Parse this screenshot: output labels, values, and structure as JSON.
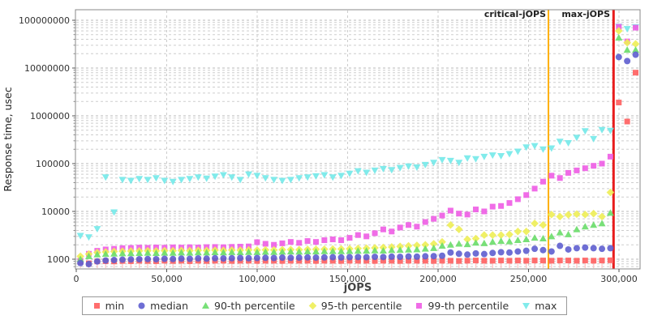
{
  "chart": {
    "y_axis_label": "Response time, usec",
    "x_axis_label": "jOPS",
    "annotations": {
      "critical": {
        "label": "critical-jOPS",
        "jops": 261000,
        "color": "#ffb000"
      },
      "max": {
        "label": "max-jOPS",
        "jops": 297000,
        "color": "#e81c1c"
      }
    }
  },
  "legend": {
    "items": [
      {
        "label": "min",
        "marker": "square",
        "color": "#ff5e5e"
      },
      {
        "label": "median",
        "marker": "circle",
        "color": "#5e5ecf"
      },
      {
        "label": "90-th percentile",
        "marker": "triangle-up",
        "color": "#69dd69"
      },
      {
        "label": "95-th percentile",
        "marker": "diamond",
        "color": "#eeee55"
      },
      {
        "label": "99-th percentile",
        "marker": "square",
        "color": "#ee5ce4"
      },
      {
        "label": "max",
        "marker": "triangle-down",
        "color": "#73e9e9"
      }
    ]
  },
  "chart_data": {
    "type": "scatter",
    "title": "",
    "xlabel": "jOPS",
    "ylabel": "Response time, usec",
    "y_scale": "log",
    "xlim": [
      0,
      312000
    ],
    "ylim": [
      600,
      100000000
    ],
    "grid": true,
    "legend_position": "bottom",
    "x_tick_values": [
      0,
      50000,
      100000,
      150000,
      200000,
      250000,
      300000
    ],
    "x_tick_labels": [
      "0",
      "50,000",
      "100,000",
      "150,000",
      "200,000",
      "250,000",
      "300,000"
    ],
    "y_tick_values": [
      1000,
      10000,
      100000,
      1000000,
      10000000,
      100000000
    ],
    "y_tick_labels": [
      "1000",
      "10000",
      "100000",
      "1000000",
      "10000000",
      "100000000"
    ],
    "vlines": [
      {
        "label": "critical-jOPS",
        "jops": 261000,
        "color": "#ffb000",
        "width": 2
      },
      {
        "label": "max-jOPS",
        "jops": 297000,
        "color": "#e81c1c",
        "width": 3
      }
    ],
    "x": [
      2300,
      6950,
      11600,
      16250,
      20900,
      25550,
      30200,
      34850,
      39500,
      44150,
      48800,
      53450,
      58100,
      62750,
      67400,
      72050,
      76700,
      81350,
      86000,
      90650,
      95300,
      99950,
      104600,
      109250,
      113900,
      118550,
      123200,
      127850,
      132500,
      137150,
      141800,
      146450,
      151100,
      155750,
      160400,
      165050,
      169700,
      174350,
      179000,
      183650,
      188300,
      192950,
      197600,
      202250,
      206900,
      211550,
      216200,
      220850,
      225500,
      230150,
      234800,
      239450,
      244100,
      248750,
      253400,
      258050,
      262700,
      267350,
      272000,
      276650,
      281300,
      285950,
      290600,
      295250,
      299900,
      304550,
      309200
    ],
    "series": [
      {
        "name": "min",
        "marker": "square",
        "color": "#ff5e5e",
        "stem_color": "#ffc9c9",
        "values": [
          880,
          820,
          900,
          910,
          900,
          920,
          910,
          930,
          920,
          910,
          930,
          920,
          930,
          910,
          930,
          920,
          930,
          930,
          920,
          930,
          930,
          920,
          930,
          930,
          920,
          930,
          930,
          930,
          920,
          930,
          930,
          920,
          930,
          930,
          930,
          920,
          930,
          930,
          920,
          930,
          930,
          930,
          920,
          930,
          930,
          920,
          930,
          940,
          930,
          930,
          940,
          930,
          940,
          930,
          940,
          940,
          930,
          940,
          940,
          930,
          940,
          930,
          940,
          950,
          1900000,
          760000,
          8000000
        ]
      },
      {
        "name": "median",
        "marker": "circle",
        "color": "#5e5ecf",
        "values": [
          830,
          790,
          900,
          940,
          960,
          980,
          990,
          1000,
          1010,
          1000,
          1020,
          1010,
          1030,
          1020,
          1040,
          1030,
          1050,
          1040,
          1050,
          1060,
          1050,
          1060,
          1070,
          1060,
          1080,
          1070,
          1080,
          1090,
          1080,
          1090,
          1100,
          1090,
          1100,
          1110,
          1100,
          1120,
          1110,
          1130,
          1120,
          1140,
          1130,
          1150,
          1160,
          1180,
          1380,
          1300,
          1250,
          1320,
          1280,
          1350,
          1400,
          1380,
          1450,
          1500,
          1650,
          1550,
          1450,
          1900,
          1600,
          1700,
          1750,
          1700,
          1650,
          1700,
          17000000,
          14000000,
          19000000
        ]
      },
      {
        "name": "90-th percentile",
        "marker": "triangle-up",
        "color": "#69dd69",
        "values": [
          1000,
          1150,
          1250,
          1280,
          1300,
          1320,
          1330,
          1340,
          1350,
          1340,
          1360,
          1350,
          1370,
          1360,
          1380,
          1370,
          1390,
          1380,
          1400,
          1390,
          1410,
          1400,
          1420,
          1410,
          1430,
          1440,
          1430,
          1450,
          1440,
          1460,
          1470,
          1460,
          1480,
          1490,
          1500,
          1520,
          1510,
          1540,
          1560,
          1580,
          1600,
          1650,
          1700,
          1900,
          2000,
          2100,
          2050,
          2200,
          2150,
          2300,
          2400,
          2350,
          2500,
          2600,
          2800,
          2700,
          3000,
          3600,
          3300,
          4200,
          4800,
          5200,
          5600,
          9300,
          43000000,
          24000000,
          24000000
        ]
      },
      {
        "name": "95-th percentile",
        "marker": "diamond",
        "color": "#eeee55",
        "values": [
          1150,
          1280,
          1380,
          1420,
          1450,
          1470,
          1480,
          1490,
          1500,
          1490,
          1510,
          1500,
          1520,
          1510,
          1530,
          1520,
          1540,
          1530,
          1550,
          1540,
          1560,
          1550,
          1570,
          1560,
          1580,
          1590,
          1580,
          1600,
          1610,
          1620,
          1630,
          1640,
          1650,
          1680,
          1700,
          1730,
          1760,
          1800,
          1850,
          1900,
          1950,
          2000,
          2100,
          2300,
          5200,
          4200,
          2600,
          2700,
          3200,
          3200,
          3200,
          3300,
          3800,
          3800,
          5600,
          5200,
          8600,
          7800,
          8500,
          8800,
          8600,
          9000,
          7800,
          25000,
          60000000,
          34000000,
          32000000
        ]
      },
      {
        "name": "99-th percentile",
        "marker": "square",
        "color": "#ee5ce4",
        "values": [
          930,
          1300,
          1500,
          1600,
          1650,
          1700,
          1720,
          1750,
          1730,
          1760,
          1740,
          1770,
          1750,
          1780,
          1760,
          1790,
          1800,
          1780,
          1810,
          1830,
          1850,
          2270,
          2100,
          2000,
          2150,
          2300,
          2200,
          2400,
          2300,
          2500,
          2600,
          2500,
          2800,
          3200,
          3000,
          3500,
          4200,
          3800,
          4600,
          5200,
          4800,
          6000,
          7000,
          8200,
          10400,
          9000,
          8600,
          11000,
          10000,
          12600,
          13000,
          15000,
          18000,
          22000,
          30000,
          42000,
          56000,
          50000,
          64000,
          72000,
          80000,
          90000,
          100000,
          140000,
          73000000,
          36000000,
          70000000
        ]
      },
      {
        "name": "max",
        "marker": "triangle-down",
        "color": "#73e9e9",
        "values": [
          3100,
          2900,
          4300,
          52000,
          9600,
          46000,
          44000,
          48000,
          46000,
          50000,
          44000,
          42000,
          46000,
          48000,
          52000,
          49000,
          54000,
          58000,
          52000,
          46000,
          60000,
          56000,
          50000,
          46000,
          44000,
          46000,
          50000,
          52000,
          55000,
          58000,
          52000,
          56000,
          62000,
          70000,
          65000,
          72000,
          78000,
          74000,
          82000,
          88000,
          84000,
          95000,
          105000,
          120000,
          115000,
          105000,
          130000,
          125000,
          140000,
          150000,
          145000,
          160000,
          180000,
          220000,
          235000,
          200000,
          210000,
          290000,
          270000,
          350000,
          480000,
          330000,
          510000,
          490000,
          74000000,
          66000000,
          72000000
        ]
      }
    ]
  }
}
